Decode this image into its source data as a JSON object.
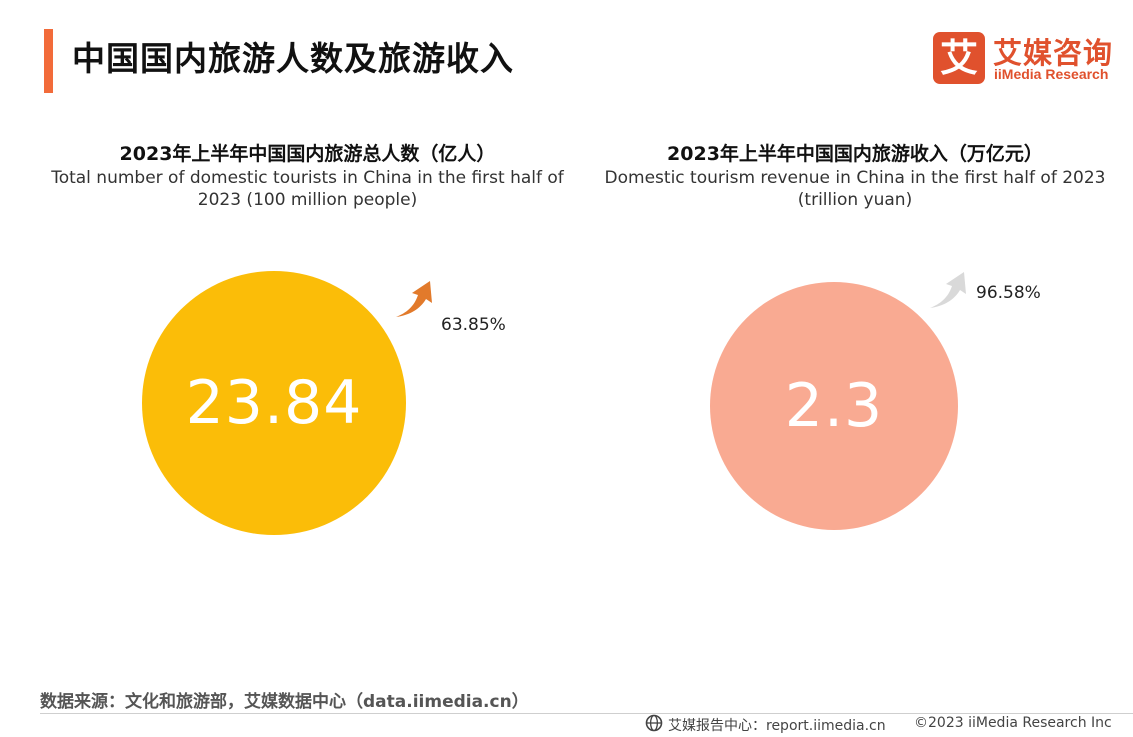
{
  "header": {
    "title": "中国国内旅游人数及旅游收入"
  },
  "logo": {
    "mark": "艾",
    "name_cn": "艾媒咨询",
    "name_en": "iiMedia Research"
  },
  "colors": {
    "accent": "#f26b3a",
    "brand": "#e0512d",
    "tourists_circle": "#fbbd08",
    "revenue_circle": "#f9aa92",
    "tourists_arrow": "#e27a2b",
    "revenue_arrow": "#d9d9d9"
  },
  "chart_data": [
    {
      "type": "bubble",
      "title_cn": "2023年上半年中国国内旅游总人数（亿人）",
      "title_en": "Total number of domestic tourists in China in the first half of 2023 (100 million people)",
      "value": 23.84,
      "value_label": "23.84",
      "growth": 63.85,
      "growth_label": "63.85%",
      "growth_direction": "up"
    },
    {
      "type": "bubble",
      "title_cn": "2023年上半年中国国内旅游收入（万亿元）",
      "title_en": "Domestic tourism revenue in China in the first half of 2023 (trillion yuan)",
      "value": 2.3,
      "value_label": "2.3",
      "growth": 96.58,
      "growth_label": "96.58%",
      "growth_direction": "up"
    }
  ],
  "source": "数据来源：文化和旅游部，艾媒数据中心（data.iimedia.cn）",
  "footer": {
    "report_center": "艾媒报告中心：report.iimedia.cn",
    "copyright": "©2023  iiMedia Research  Inc"
  }
}
